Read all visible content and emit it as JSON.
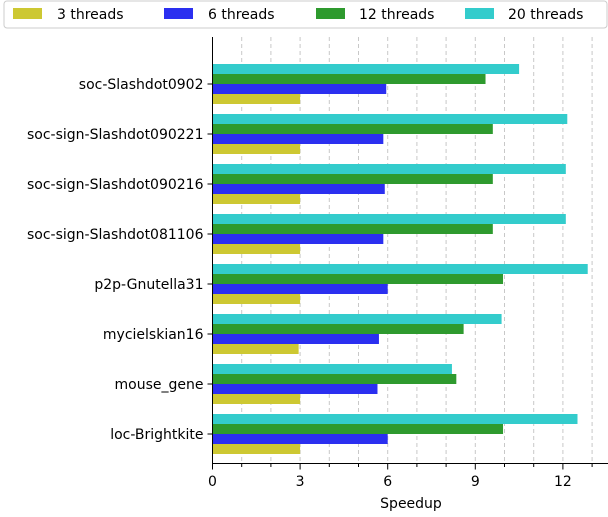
{
  "chart_data": {
    "type": "bar",
    "orientation": "horizontal",
    "categories": [
      "soc-Slashdot0902",
      "soc-sign-Slashdot090221",
      "soc-sign-Slashdot090216",
      "soc-sign-Slashdot081106",
      "p2p-Gnutella31",
      "mycielskian16",
      "mouse_gene",
      "loc-Brightkite"
    ],
    "series": [
      {
        "name": "3 threads",
        "color": "#cdc832",
        "values": [
          3.0,
          3.0,
          3.0,
          3.0,
          3.0,
          2.95,
          3.0,
          3.0
        ]
      },
      {
        "name": "6 threads",
        "color": "#2b2ff0",
        "values": [
          5.95,
          5.85,
          5.9,
          5.85,
          6.0,
          5.7,
          5.65,
          6.0
        ]
      },
      {
        "name": "12 threads",
        "color": "#2e9a2e",
        "values": [
          9.35,
          9.6,
          9.6,
          9.6,
          9.95,
          8.6,
          8.35,
          9.95
        ]
      },
      {
        "name": "20 threads",
        "color": "#33cccc",
        "values": [
          10.5,
          12.15,
          12.1,
          12.1,
          12.85,
          9.9,
          8.2,
          12.5
        ]
      }
    ],
    "xlabel": "Speedup",
    "ylabel": "",
    "xlim": [
      0,
      13.3
    ],
    "xticks_major": [
      0,
      3,
      6,
      9,
      12
    ],
    "xticks_major_labels": [
      "0",
      "3",
      "6",
      "9",
      "12"
    ],
    "xticks_minor": [
      1,
      2,
      4,
      5,
      7,
      8,
      10,
      11,
      13
    ],
    "grid": "vertical dashed",
    "legend": "top, outside plot, 4 columns"
  }
}
